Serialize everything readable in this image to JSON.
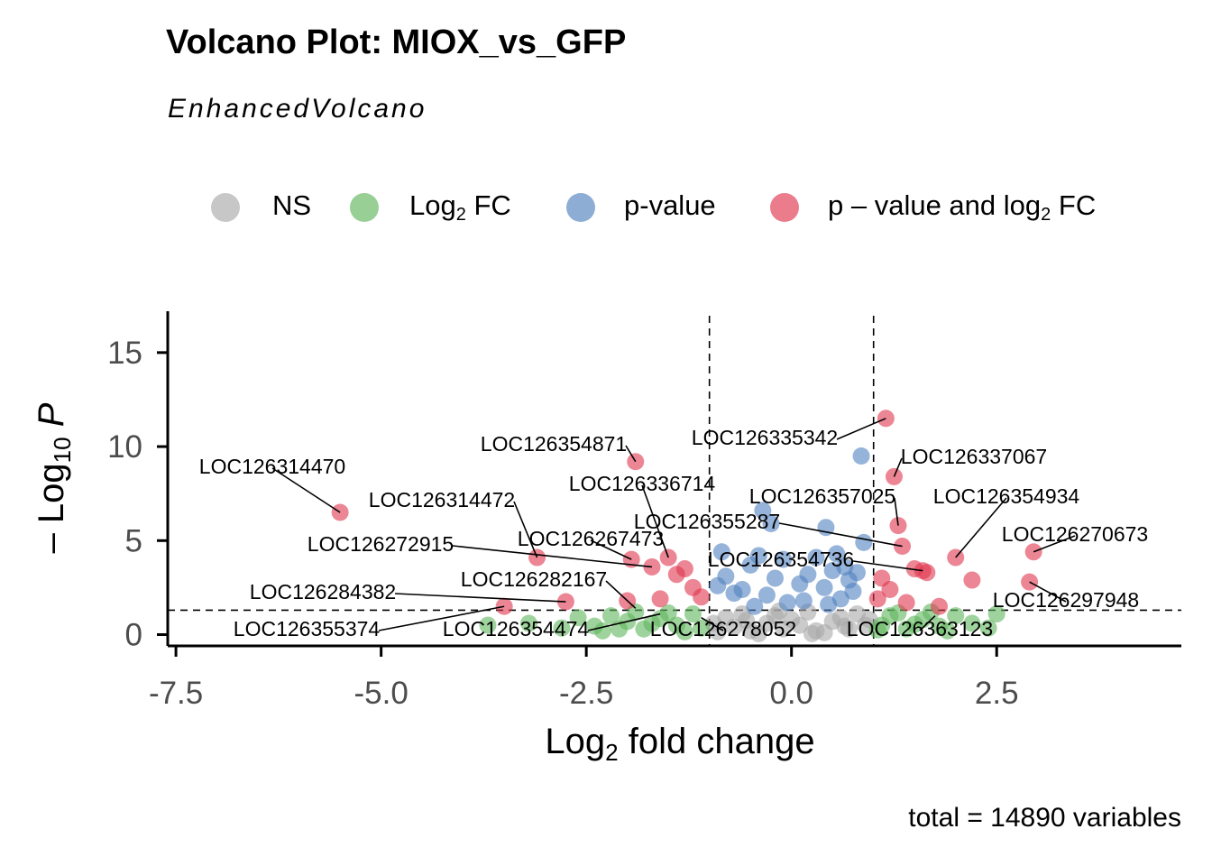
{
  "header": {
    "title": "Volcano Plot: MIOX_vs_GFP",
    "subtitle": "EnhancedVolcano"
  },
  "legend": [
    {
      "key": "ns",
      "label": "NS",
      "color": "#a9a9a9"
    },
    {
      "key": "log2fc",
      "label": "Log",
      "sub": "2",
      "suffix": " FC",
      "color": "#5fb55c"
    },
    {
      "key": "pvalue",
      "label": "p-value",
      "color": "#5081bf"
    },
    {
      "key": "both",
      "label": "p – value and log",
      "sub": "2",
      "suffix": " FC",
      "color": "#e0364f"
    }
  ],
  "axes": {
    "xlabel_main": "Log",
    "xlabel_sub": "2",
    "xlabel_rest": " fold change",
    "ylabel_prefix": "– Log",
    "ylabel_sub": "10",
    "ylabel_var": "P"
  },
  "caption": "total = 14890 variables",
  "chart_data": {
    "type": "scatter",
    "title": "Volcano Plot: MIOX_vs_GFP",
    "subtitle": "EnhancedVolcano",
    "xlabel": "Log2 fold change",
    "ylabel": "-Log10 P",
    "xlim": [
      -7.6,
      4.75
    ],
    "ylim": [
      -0.6,
      17.2
    ],
    "xticks": [
      -7.5,
      -5.0,
      -2.5,
      0.0,
      2.5
    ],
    "xtick_labels": [
      "-7.5",
      "-5.0",
      "-2.5",
      "0.0",
      "2.5"
    ],
    "yticks": [
      0,
      5,
      10,
      15
    ],
    "ytick_labels": [
      "0",
      "5",
      "10",
      "15"
    ],
    "cutoffs": {
      "fc": [
        -1,
        1
      ],
      "p_log10": 1.3
    },
    "colors": {
      "NS": "#a9a9a9",
      "Log2FC": "#5fb55c",
      "pvalue": "#5081bf",
      "both": "#e0364f"
    },
    "series": [
      {
        "name": "NS",
        "points": [
          [
            -0.9,
            0.15
          ],
          [
            -0.7,
            0.4
          ],
          [
            -0.5,
            0.2
          ],
          [
            -0.3,
            0.6
          ],
          [
            -0.1,
            0.3
          ],
          [
            0.1,
            0.5
          ],
          [
            0.3,
            0.2
          ],
          [
            0.5,
            0.7
          ],
          [
            0.7,
            0.3
          ],
          [
            0.9,
            0.5
          ],
          [
            -0.8,
            0.9
          ],
          [
            -0.6,
            1.1
          ],
          [
            -0.2,
            1.0
          ],
          [
            0.2,
            1.2
          ],
          [
            0.6,
            0.9
          ],
          [
            0.8,
            1.1
          ],
          [
            -0.4,
            0.05
          ],
          [
            0.4,
            0.1
          ],
          [
            0.0,
            0.8
          ],
          [
            -0.95,
            0.6
          ],
          [
            0.95,
            0.8
          ],
          [
            -0.15,
            1.25
          ],
          [
            0.25,
            0.05
          ],
          [
            0.65,
            0.45
          ],
          [
            -0.55,
            0.75
          ]
        ]
      },
      {
        "name": "Log2 FC",
        "points": [
          [
            -3.7,
            0.5
          ],
          [
            -3.2,
            0.6
          ],
          [
            -2.8,
            0.35
          ],
          [
            -2.6,
            0.9
          ],
          [
            -2.4,
            0.45
          ],
          [
            -2.2,
            1.0
          ],
          [
            -2.0,
            0.7
          ],
          [
            -1.8,
            0.3
          ],
          [
            -1.6,
            0.85
          ],
          [
            -1.4,
            0.5
          ],
          [
            -1.2,
            1.1
          ],
          [
            -1.1,
            0.35
          ],
          [
            -1.5,
            1.15
          ],
          [
            -1.9,
            1.2
          ],
          [
            -2.3,
            0.2
          ],
          [
            -1.3,
            0.15
          ],
          [
            -1.7,
            0.6
          ],
          [
            -2.1,
            0.3
          ],
          [
            1.1,
            0.5
          ],
          [
            1.2,
            1.0
          ],
          [
            1.4,
            0.3
          ],
          [
            1.6,
            0.8
          ],
          [
            1.8,
            0.45
          ],
          [
            2.0,
            1.0
          ],
          [
            2.2,
            0.6
          ],
          [
            2.5,
            1.1
          ],
          [
            2.4,
            0.35
          ],
          [
            1.3,
            1.15
          ],
          [
            1.5,
            0.55
          ],
          [
            1.9,
            0.2
          ],
          [
            1.05,
            0.25
          ],
          [
            1.7,
            1.2
          ]
        ]
      },
      {
        "name": "p-value",
        "points": [
          [
            -0.8,
            3.1
          ],
          [
            -0.6,
            2.4
          ],
          [
            -0.5,
            3.7
          ],
          [
            -0.4,
            4.2
          ],
          [
            -0.3,
            2.1
          ],
          [
            -0.2,
            3.0
          ],
          [
            -0.1,
            4.0
          ],
          [
            0.1,
            2.7
          ],
          [
            0.2,
            3.2
          ],
          [
            0.3,
            4.1
          ],
          [
            0.4,
            2.5
          ],
          [
            0.5,
            3.4
          ],
          [
            0.6,
            1.9
          ],
          [
            0.7,
            2.9
          ],
          [
            0.8,
            3.3
          ],
          [
            0.88,
            4.9
          ],
          [
            -0.9,
            2.6
          ],
          [
            -0.7,
            2.2
          ],
          [
            -0.35,
            6.6
          ],
          [
            -0.25,
            5.9
          ],
          [
            0.45,
            1.6
          ],
          [
            0.85,
            9.5
          ],
          [
            0.42,
            5.7
          ],
          [
            -0.85,
            4.4
          ],
          [
            -0.05,
            1.7
          ],
          [
            0.15,
            1.8
          ],
          [
            0.65,
            3.6
          ],
          [
            0.75,
            2.3
          ],
          [
            -0.45,
            1.5
          ],
          [
            0.55,
            4.3
          ]
        ]
      },
      {
        "name": "p – value and log2 FC",
        "points": [
          [
            -5.5,
            6.5
          ],
          [
            -3.1,
            4.1
          ],
          [
            -3.5,
            1.5
          ],
          [
            -2.75,
            1.75
          ],
          [
            -1.9,
            9.2
          ],
          [
            -1.95,
            4.0
          ],
          [
            -1.7,
            3.6
          ],
          [
            -1.5,
            4.1
          ],
          [
            -1.4,
            3.2
          ],
          [
            -1.3,
            3.5
          ],
          [
            -1.2,
            2.5
          ],
          [
            -1.1,
            2.0
          ],
          [
            -2.0,
            1.8
          ],
          [
            -1.6,
            1.9
          ],
          [
            1.15,
            11.5
          ],
          [
            1.25,
            8.4
          ],
          [
            1.3,
            5.8
          ],
          [
            1.35,
            4.7
          ],
          [
            1.5,
            3.5
          ],
          [
            1.6,
            3.4
          ],
          [
            1.65,
            3.3
          ],
          [
            2.0,
            4.1
          ],
          [
            2.2,
            2.9
          ],
          [
            2.9,
            2.8
          ],
          [
            2.95,
            4.4
          ],
          [
            1.1,
            3.0
          ],
          [
            1.2,
            2.4
          ],
          [
            1.4,
            1.7
          ],
          [
            1.8,
            1.5
          ],
          [
            1.05,
            1.9
          ]
        ]
      }
    ],
    "annotations": [
      {
        "text": "LOC126314470",
        "x": -5.5,
        "y": 6.5
      },
      {
        "text": "LOC126314472",
        "x": -3.1,
        "y": 4.1
      },
      {
        "text": "LOC126272915",
        "x": -1.7,
        "y": 3.6
      },
      {
        "text": "LOC126284382",
        "x": -2.75,
        "y": 1.75
      },
      {
        "text": "LOC126355374",
        "x": -3.5,
        "y": 1.5
      },
      {
        "text": "LOC126354871",
        "x": -1.9,
        "y": 9.2
      },
      {
        "text": "LOC126336714",
        "x": -1.5,
        "y": 4.1
      },
      {
        "text": "LOC126267473",
        "x": -1.95,
        "y": 4.0
      },
      {
        "text": "LOC126282167",
        "x": -1.9,
        "y": 1.4
      },
      {
        "text": "LOC126354474",
        "x": -1.6,
        "y": 1.1
      },
      {
        "text": "LOC126278052",
        "x": -1.1,
        "y": 0.9
      },
      {
        "text": "LOC126335342",
        "x": 1.15,
        "y": 11.5
      },
      {
        "text": "LOC126337067",
        "x": 1.25,
        "y": 8.4
      },
      {
        "text": "LOC126357025",
        "x": 1.3,
        "y": 5.8
      },
      {
        "text": "LOC126355287",
        "x": 1.35,
        "y": 4.7
      },
      {
        "text": "LOC126354934",
        "x": 2.0,
        "y": 4.1
      },
      {
        "text": "LOC126270673",
        "x": 2.95,
        "y": 4.4
      },
      {
        "text": "LOC126354736",
        "x": 1.6,
        "y": 3.4
      },
      {
        "text": "LOC126297948",
        "x": 2.9,
        "y": 2.8
      },
      {
        "text": "LOC126363123",
        "x": 1.75,
        "y": 1.0
      }
    ]
  }
}
